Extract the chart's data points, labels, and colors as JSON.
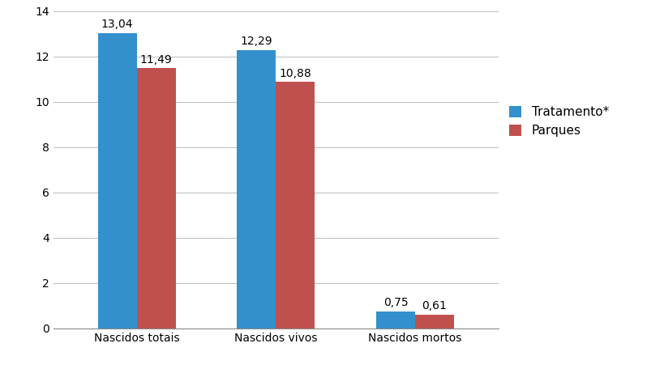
{
  "categories": [
    "Nascidos totais",
    "Nascidos vivos",
    "Nascidos mortos"
  ],
  "tratamento_values": [
    13.04,
    12.29,
    0.75
  ],
  "parques_values": [
    11.49,
    10.88,
    0.61
  ],
  "tratamento_color": "#3390CC",
  "parques_color": "#C0504D",
  "legend_labels": [
    "Tratamento*",
    "Parques"
  ],
  "ylim": [
    0,
    14
  ],
  "yticks": [
    0,
    2,
    4,
    6,
    8,
    10,
    12,
    14
  ],
  "bar_width": 0.28,
  "label_fontsize": 10,
  "tick_fontsize": 10,
  "legend_fontsize": 11,
  "background_color": "#ffffff",
  "grid_color": "#bbbbbb"
}
